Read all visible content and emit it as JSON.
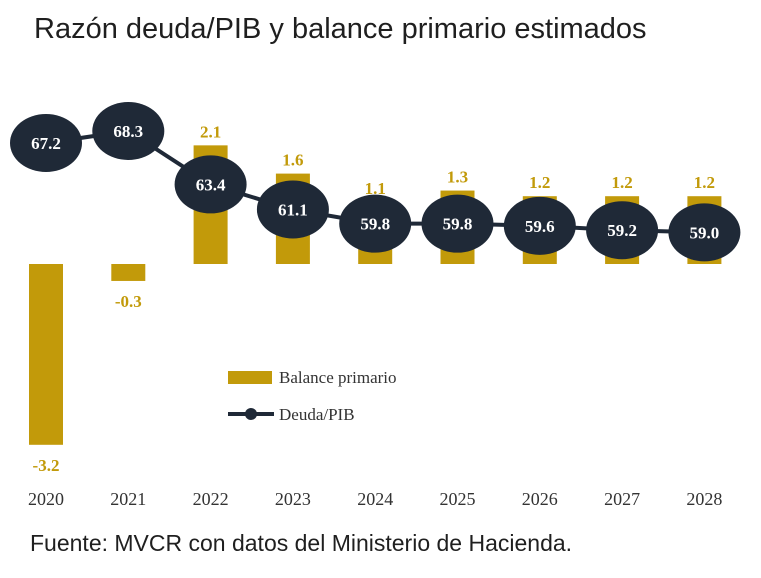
{
  "title": "Razón deuda/PIB y balance primario estimados",
  "source": "Fuente: MVCR con datos del Ministerio de Hacienda.",
  "colors": {
    "bar": "#C29A0A",
    "bar_label": "#C29A0A",
    "debt_circle": "#1F2937",
    "debt_text": "#ffffff",
    "axis_text": "#333333"
  },
  "chart_data": {
    "type": "bar+line",
    "categories": [
      "2020",
      "2021",
      "2022",
      "2023",
      "2024",
      "2025",
      "2026",
      "2027",
      "2028"
    ],
    "series": [
      {
        "name": "Balance primario",
        "type": "bar",
        "values": [
          -3.2,
          -0.3,
          2.1,
          1.6,
          1.1,
          1.3,
          1.2,
          1.2,
          1.2
        ],
        "labels": [
          "-3.2",
          "-0.3",
          "2.1",
          "1.6",
          "1.1",
          "1.3",
          "1.2",
          "1.2",
          "1.2"
        ]
      },
      {
        "name": "Deuda/PIB",
        "type": "line",
        "values": [
          67.2,
          68.3,
          63.4,
          61.1,
          59.8,
          59.8,
          59.6,
          59.2,
          59.0
        ],
        "labels": [
          "67.2",
          "68.3",
          "63.4",
          "61.1",
          "59.8",
          "59.8",
          "59.6",
          "59.2",
          "59.0"
        ]
      }
    ],
    "legend": [
      "Balance primario",
      "Deuda/PIB"
    ],
    "legend_position": "center-left"
  }
}
